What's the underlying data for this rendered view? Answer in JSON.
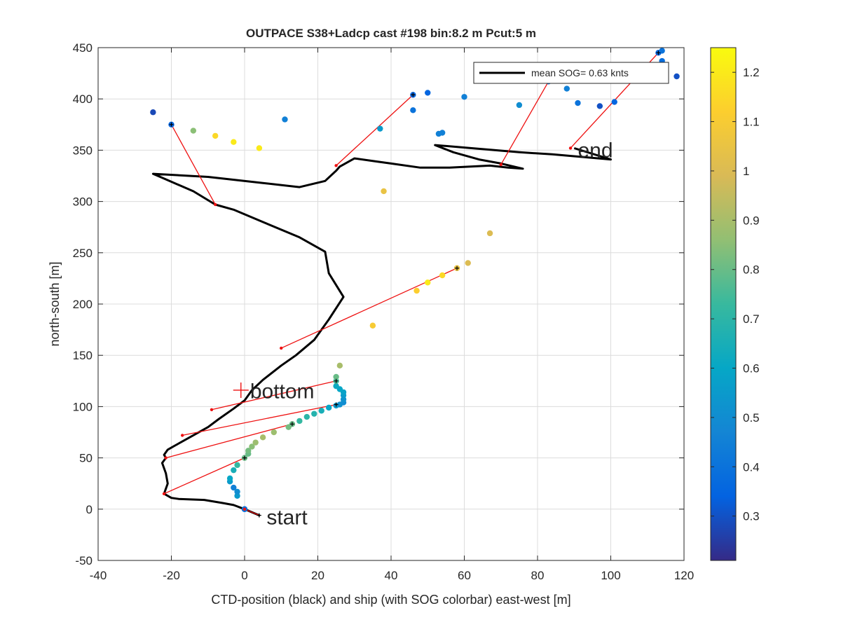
{
  "chart_data": {
    "type": "scatter",
    "title": "OUTPACE S38+Ladcp cast #198 bin:8.2 m  Pcut:5 m",
    "xlabel": "CTD-position (black) and ship (with SOG colorbar) east-west [m]",
    "ylabel": "north-south [m]",
    "xlim": [
      -40,
      120
    ],
    "ylim": [
      -50,
      450
    ],
    "xticks": [
      -40,
      -20,
      0,
      20,
      40,
      60,
      80,
      100,
      120
    ],
    "yticks": [
      -50,
      0,
      50,
      100,
      150,
      200,
      250,
      300,
      350,
      400,
      450
    ],
    "grid": true,
    "legend": {
      "label": "mean SOG=  0.63 knts",
      "placement": "top-right"
    },
    "annotations": [
      {
        "text": "start",
        "x": 6,
        "y": -8
      },
      {
        "text": "bottom",
        "x": 1.5,
        "y": 115
      },
      {
        "text": "end",
        "x": 91,
        "y": 350
      }
    ],
    "bottom_marker": {
      "x": -1,
      "y": 116
    },
    "colorbar": {
      "range": [
        0.21,
        1.25
      ],
      "ticks": [
        0.3,
        0.4,
        0.5,
        0.6,
        0.7,
        0.8,
        0.9,
        1,
        1.1,
        1.2
      ],
      "colormap": "parula"
    },
    "ctd_track": [
      [
        0,
        0
      ],
      [
        4,
        -6
      ],
      [
        0,
        0
      ],
      [
        -3,
        4
      ],
      [
        -6,
        6
      ],
      [
        -11,
        9
      ],
      [
        -18,
        10
      ],
      [
        -20,
        11
      ],
      [
        -22,
        15
      ],
      [
        -21,
        25
      ],
      [
        -21.5,
        35
      ],
      [
        -22.5,
        45
      ],
      [
        -21.5,
        50
      ],
      [
        -22,
        53
      ],
      [
        -21,
        58
      ],
      [
        -19,
        62
      ],
      [
        -15,
        70
      ],
      [
        -10,
        80
      ],
      [
        -7,
        88
      ],
      [
        -3,
        98
      ],
      [
        0,
        106
      ],
      [
        2,
        116
      ],
      [
        5,
        126
      ],
      [
        10,
        140
      ],
      [
        14,
        150
      ],
      [
        19,
        165
      ],
      [
        23,
        185
      ],
      [
        27,
        207
      ],
      [
        23,
        230
      ],
      [
        22,
        251
      ],
      [
        15,
        265
      ],
      [
        5,
        280
      ],
      [
        -3,
        292
      ],
      [
        -8,
        297
      ],
      [
        -14,
        310
      ],
      [
        -25,
        327
      ],
      [
        -10,
        324
      ],
      [
        5,
        318
      ],
      [
        15,
        314
      ],
      [
        22,
        320
      ],
      [
        25,
        330
      ],
      [
        26,
        334
      ],
      [
        30,
        342
      ],
      [
        36,
        339
      ],
      [
        40,
        337
      ],
      [
        48,
        333
      ],
      [
        56,
        333
      ],
      [
        67,
        335
      ],
      [
        72,
        333
      ],
      [
        76,
        332
      ],
      [
        70,
        337
      ],
      [
        64,
        341
      ],
      [
        57,
        348
      ],
      [
        52,
        355
      ],
      [
        62,
        352
      ],
      [
        75,
        348
      ],
      [
        84,
        346
      ],
      [
        100,
        341
      ],
      [
        90,
        352
      ]
    ],
    "ship_points": [
      [
        0,
        0,
        0.35
      ],
      [
        0,
        0,
        0.4
      ],
      [
        -2,
        13,
        0.55
      ],
      [
        -2,
        17,
        0.5
      ],
      [
        -3,
        21,
        0.45
      ],
      [
        -4,
        27,
        0.55
      ],
      [
        -4,
        30,
        0.6
      ],
      [
        -3,
        38,
        0.65
      ],
      [
        -2,
        43,
        0.72
      ],
      [
        0,
        50,
        0.8
      ],
      [
        1,
        54,
        0.8
      ],
      [
        1,
        57,
        0.82
      ],
      [
        2,
        61,
        0.85
      ],
      [
        3,
        65,
        0.88
      ],
      [
        5,
        70,
        0.9
      ],
      [
        8,
        75,
        0.88
      ],
      [
        12,
        80,
        0.82
      ],
      [
        13,
        83,
        0.8
      ],
      [
        15,
        86,
        0.72
      ],
      [
        17,
        90,
        0.7
      ],
      [
        19,
        93,
        0.68
      ],
      [
        21,
        96,
        0.65
      ],
      [
        23,
        99,
        0.6
      ],
      [
        25,
        101,
        0.55
      ],
      [
        26,
        102,
        0.52
      ],
      [
        27,
        104,
        0.5
      ],
      [
        27,
        107,
        0.52
      ],
      [
        27,
        111,
        0.55
      ],
      [
        27,
        114,
        0.58
      ],
      [
        26,
        117,
        0.6
      ],
      [
        25,
        120,
        0.62
      ],
      [
        25,
        125,
        0.75
      ],
      [
        25,
        129,
        0.8
      ],
      [
        26,
        140,
        0.9
      ],
      [
        35,
        179,
        1.1
      ],
      [
        47,
        213,
        1.12
      ],
      [
        50,
        221,
        1.2
      ],
      [
        54,
        228,
        1.15
      ],
      [
        58,
        235,
        1.05
      ],
      [
        61,
        240,
        1.0
      ],
      [
        67,
        269,
        1.0
      ],
      [
        38,
        310,
        1.05
      ],
      [
        -25,
        387,
        0.28
      ],
      [
        -20,
        375,
        0.35
      ],
      [
        -14,
        369,
        0.85
      ],
      [
        -8,
        364,
        1.15
      ],
      [
        -3,
        358,
        1.2
      ],
      [
        4,
        352,
        1.2
      ],
      [
        11,
        380,
        0.45
      ],
      [
        37,
        371,
        0.55
      ],
      [
        46,
        389,
        0.4
      ],
      [
        46,
        404,
        0.35
      ],
      [
        50,
        406,
        0.35
      ],
      [
        53,
        366,
        0.45
      ],
      [
        54,
        367,
        0.45
      ],
      [
        60,
        402,
        0.45
      ],
      [
        75,
        394,
        0.5
      ],
      [
        83,
        417,
        0.4
      ],
      [
        88,
        410,
        0.45
      ],
      [
        91,
        396,
        0.4
      ],
      [
        97,
        393,
        0.3
      ],
      [
        101,
        397,
        0.35
      ],
      [
        113,
        445,
        0.35
      ],
      [
        114,
        447,
        0.4
      ],
      [
        114,
        437,
        0.38
      ],
      [
        118,
        422,
        0.3
      ]
    ],
    "connections": [
      [
        [
          0,
          0
        ],
        [
          4,
          -6
        ]
      ],
      [
        [
          -22,
          15
        ],
        [
          0,
          50
        ]
      ],
      [
        [
          -21.5,
          50
        ],
        [
          13,
          83
        ]
      ],
      [
        [
          -17,
          72
        ],
        [
          25,
          102
        ]
      ],
      [
        [
          -9,
          97
        ],
        [
          25,
          125
        ]
      ],
      [
        [
          10,
          157
        ],
        [
          58,
          235
        ]
      ],
      [
        [
          -8,
          297
        ],
        [
          -20,
          375
        ]
      ],
      [
        [
          25,
          335
        ],
        [
          46,
          404
        ]
      ],
      [
        [
          70,
          336
        ],
        [
          83,
          417
        ]
      ],
      [
        [
          89,
          352
        ],
        [
          113,
          445
        ]
      ]
    ]
  }
}
